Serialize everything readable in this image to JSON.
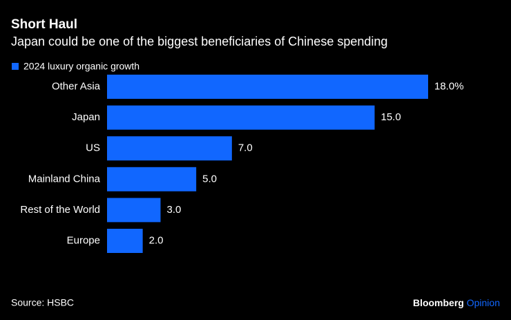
{
  "chart_data": {
    "type": "bar",
    "orientation": "horizontal",
    "title": "Short Haul",
    "subtitle": "Japan could be one of the biggest beneficiaries of Chinese spending",
    "categories": [
      "Other Asia",
      "Japan",
      "US",
      "Mainland China",
      "Rest of the World",
      "Europe"
    ],
    "series": [
      {
        "name": "2024 luxury organic growth",
        "color": "#1167ff",
        "values": [
          18.0,
          15.0,
          7.0,
          5.0,
          3.0,
          2.0
        ],
        "value_labels": [
          "18.0%",
          "15.0",
          "7.0",
          "5.0",
          "3.0",
          "2.0"
        ]
      }
    ],
    "xlim": [
      0,
      18
    ],
    "source": "Source: HSBC",
    "brand": "Bloomberg",
    "brand_section": "Opinion"
  }
}
